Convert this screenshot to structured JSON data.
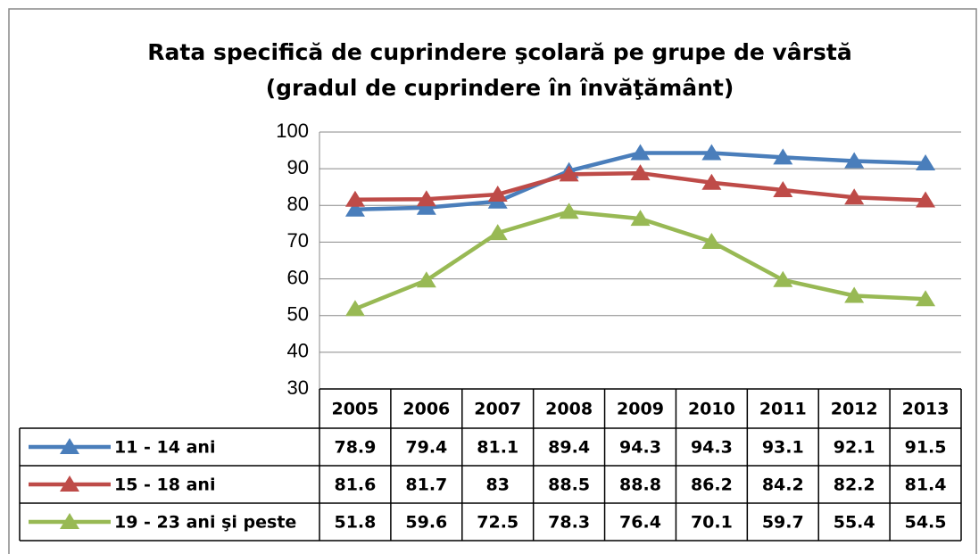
{
  "chart_data": {
    "type": "line",
    "title": "Rata specifică de cuprindere şcolară pe grupe de vârstă",
    "subtitle": "(gradul de cuprindere în învăţământ)",
    "categories": [
      "2005",
      "2006",
      "2007",
      "2008",
      "2009",
      "2010",
      "2011",
      "2012",
      "2013"
    ],
    "ylim": [
      30,
      100
    ],
    "yticks": [
      30,
      40,
      50,
      60,
      70,
      80,
      90,
      100
    ],
    "grid": true,
    "series": [
      {
        "name": "11 - 14 ani",
        "color": "#4a7ebb",
        "values": [
          78.9,
          79.4,
          81.1,
          89.4,
          94.3,
          94.3,
          93.1,
          92.1,
          91.5
        ]
      },
      {
        "name": "15 - 18 ani",
        "color": "#be4b48",
        "values": [
          81.6,
          81.7,
          83,
          88.5,
          88.8,
          86.2,
          84.2,
          82.2,
          81.4
        ]
      },
      {
        "name": "19 - 23 ani şi peste",
        "color": "#98b954",
        "values": [
          51.8,
          59.6,
          72.5,
          78.3,
          76.4,
          70.1,
          59.7,
          55.4,
          54.5
        ]
      }
    ]
  }
}
